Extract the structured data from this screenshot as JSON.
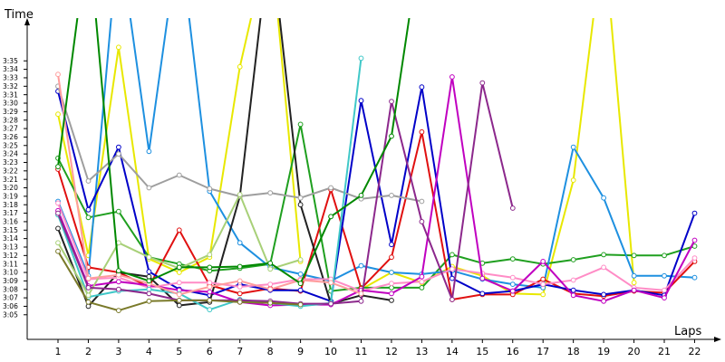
{
  "chart_data": {
    "type": "line",
    "title": "",
    "xlabel": "Laps",
    "ylabel": "Time",
    "categories": [
      1,
      2,
      3,
      4,
      5,
      6,
      7,
      8,
      9,
      10,
      11,
      12,
      13,
      14,
      15,
      16,
      17,
      18,
      19,
      20,
      21,
      22
    ],
    "y_tick_labels": [
      "3:05",
      "3:06",
      "3:07",
      "3:08",
      "3:09",
      "3:10",
      "3:11",
      "3:12",
      "3:13",
      "3:14",
      "3:15",
      "3:16",
      "3:17",
      "3:18",
      "3:19",
      "3:20",
      "3:21",
      "3:22",
      "3:23",
      "3:24",
      "3:25",
      "3:26",
      "3:27",
      "3:28",
      "3:29",
      "3:30",
      "3:31",
      "3:32",
      "3:33",
      "3:34",
      "3:35"
    ],
    "y_unit": "seconds",
    "ylim": [
      183,
      216
    ],
    "grid": false,
    "legend": "none",
    "series": [
      {
        "color": "#e8e800",
        "values": [
          208.7,
          192.0,
          216.6,
          191.6,
          190.0,
          191.8,
          214.3,
          230,
          191.3,
          null,
          188.0,
          190.0,
          188.8,
          190.7,
          189.6,
          187.5,
          187.4,
          200.9,
          230,
          188.8,
          null,
          null
        ]
      },
      {
        "color": "#1f9f1f",
        "values": [
          203.5,
          196.5,
          197.2,
          191.8,
          191.0,
          190.2,
          190.5,
          191.0,
          207.5,
          187.8,
          188.2,
          188.2,
          188.2,
          192.1,
          191.1,
          191.6,
          191.0,
          191.5,
          192.1,
          192.0,
          192.0,
          193.1
        ]
      },
      {
        "color": "#1e90e0",
        "values": [
          198.4,
          189.6,
          230,
          204.3,
          230,
          199.6,
          193.5,
          190.6,
          189.8,
          189.0,
          190.8,
          190.0,
          189.8,
          190.2,
          189.2,
          188.6,
          188.2,
          204.8,
          198.8,
          189.6,
          189.6,
          189.4
        ]
      },
      {
        "color": "#e01010",
        "values": [
          202.2,
          190.6,
          190.0,
          188.3,
          195.0,
          188.5,
          187.5,
          188.1,
          187.8,
          199.8,
          188.1,
          191.8,
          206.6,
          186.8,
          187.4,
          187.4,
          189.2,
          187.5,
          187.2,
          187.8,
          187.6,
          191.3
        ]
      },
      {
        "color": "#0000c8",
        "values": [
          211.4,
          197.4,
          204.8,
          190.1,
          188.0,
          187.3,
          188.6,
          187.9,
          187.9,
          186.6,
          210.3,
          193.3,
          211.9,
          189.3,
          187.5,
          187.8,
          188.6,
          187.9,
          187.4,
          187.9,
          187.3,
          197.0
        ]
      },
      {
        "color": "#222222",
        "values": [
          195.2,
          186.0,
          190.0,
          189.5,
          186.1,
          186.5,
          199.0,
          230,
          198.0,
          186.3,
          187.3,
          186.7,
          null,
          null,
          null,
          null,
          null,
          null,
          null,
          null,
          null,
          null
        ]
      },
      {
        "color": "#9e9e9e",
        "values": [
          212.0,
          200.8,
          204.0,
          200.0,
          201.5,
          199.9,
          199.0,
          199.4,
          198.8,
          200.0,
          198.7,
          199.1,
          198.4,
          null,
          null,
          null,
          null,
          null,
          null,
          null,
          null,
          null
        ]
      },
      {
        "color": "#ff8cc6",
        "values": [
          198.2,
          189.2,
          189.4,
          188.2,
          188.8,
          188.8,
          188.3,
          188.6,
          189.2,
          189.2,
          187.8,
          188.7,
          188.9,
          190.4,
          189.9,
          189.4,
          188.6,
          189.1,
          190.6,
          188.2,
          187.9,
          191.7
        ]
      },
      {
        "color": "#c000c0",
        "values": [
          197.3,
          188.4,
          188.9,
          188.5,
          187.9,
          187.7,
          186.5,
          186.1,
          186.2,
          186.2,
          187.9,
          187.5,
          189.5,
          213.1,
          189.3,
          187.8,
          191.3,
          187.3,
          186.6,
          187.9,
          187.0,
          193.8
        ]
      },
      {
        "color": "#40c8c8",
        "values": [
          196.8,
          187.1,
          187.8,
          188.0,
          187.5,
          185.6,
          186.8,
          186.4,
          186.0,
          186.4,
          215.3,
          null,
          null,
          null,
          null,
          null,
          null,
          null,
          null,
          null,
          null,
          null
        ]
      },
      {
        "color": "#a8d078",
        "values": [
          193.5,
          187.3,
          193.5,
          191.8,
          190.5,
          192.1,
          199.2,
          190.4,
          191.5,
          null,
          null,
          null,
          null,
          null,
          null,
          null,
          null,
          null,
          null,
          null,
          null,
          null
        ]
      },
      {
        "color": "#8c288c",
        "values": [
          197.0,
          188.2,
          188.0,
          187.5,
          186.7,
          186.7,
          186.7,
          186.6,
          186.3,
          186.3,
          186.6,
          210.2,
          196.0,
          186.8,
          212.4,
          197.6,
          null,
          null,
          null,
          null,
          null,
          null
        ]
      },
      {
        "color": "#7a7a2a",
        "values": [
          192.5,
          186.5,
          185.5,
          186.6,
          186.7,
          186.7,
          186.5,
          186.4,
          186.2,
          null,
          null,
          null,
          null,
          null,
          null,
          null,
          null,
          null,
          null,
          null,
          null,
          null
        ]
      },
      {
        "color": "#ff9d9d",
        "values": [
          213.4,
          189.3,
          189.7,
          188.7,
          187.4,
          188.3,
          189.0,
          188.0,
          189.1,
          188.8,
          187.5,
          null,
          null,
          null,
          null,
          null,
          null,
          null,
          null,
          null,
          null,
          null
        ]
      },
      {
        "color": "#008800",
        "values": [
          202.5,
          230,
          190.2,
          189.0,
          190.6,
          190.6,
          190.7,
          191.1,
          188.7,
          196.6,
          199.1,
          206.1,
          230,
          null,
          null,
          null,
          null,
          null,
          null,
          null,
          null,
          null
        ]
      }
    ]
  }
}
